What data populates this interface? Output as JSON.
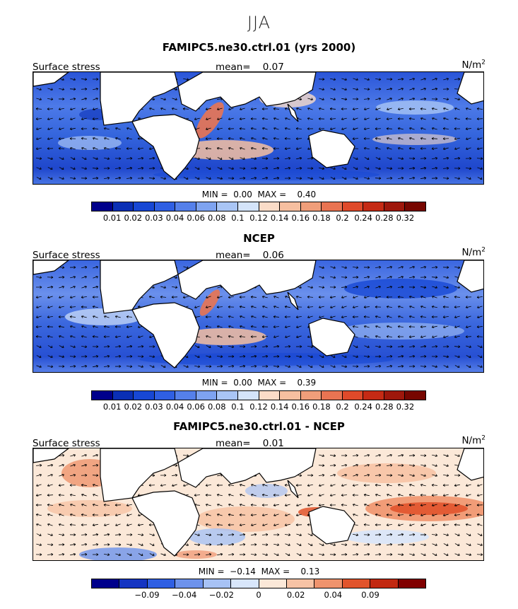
{
  "season": "JJA",
  "panels": [
    {
      "title": "FAMIPC5.ne30.ctrl.01 (yrs 2000)",
      "variable": "Surface stress",
      "mean_label": "mean=",
      "mean_value": "0.07",
      "units": "N/m",
      "units_exp": "2",
      "min_label": "MIN =",
      "min_value": "0.00",
      "max_label": "MAX =",
      "max_value": "0.40",
      "colorbar_ticks": [
        "0.01",
        "0.02",
        "0.03",
        "0.04",
        "0.06",
        "0.08",
        "0.1",
        "0.12",
        "0.14",
        "0.16",
        "0.18",
        "0.2",
        "0.24",
        "0.28",
        "0.32"
      ]
    },
    {
      "title": "NCEP",
      "variable": "Surface stress",
      "mean_label": "mean=",
      "mean_value": "0.06",
      "units": "N/m",
      "units_exp": "2",
      "min_label": "MIN =",
      "min_value": "0.00",
      "max_label": "MAX =",
      "max_value": "0.39",
      "colorbar_ticks": [
        "0.01",
        "0.02",
        "0.03",
        "0.04",
        "0.06",
        "0.08",
        "0.1",
        "0.12",
        "0.14",
        "0.16",
        "0.18",
        "0.2",
        "0.24",
        "0.28",
        "0.32"
      ]
    },
    {
      "title": "FAMIPC5.ne30.ctrl.01 - NCEP",
      "variable": "Surface stress",
      "mean_label": "mean=",
      "mean_value": "0.01",
      "units": "N/m",
      "units_exp": "2",
      "min_label": "MIN =",
      "min_value": "−0.14",
      "max_label": "MAX =",
      "max_value": "0.13",
      "colorbar_ticks": [
        "−0.09",
        "−0.04",
        "−0.02",
        "0",
        "0.02",
        "0.04",
        "0.09"
      ]
    }
  ],
  "colors": {
    "abs_scale": [
      "#00008b",
      "#0a2fb5",
      "#1747d4",
      "#2f5fe3",
      "#5580ea",
      "#7ea3f0",
      "#a9c5f5",
      "#d4e4fa",
      "#fadcc8",
      "#f6bfa0",
      "#f09e7a",
      "#e97452",
      "#df4a2a",
      "#c52a14",
      "#9e170b",
      "#770600"
    ],
    "diff_scale": [
      "#00008b",
      "#1535c2",
      "#2f5fe3",
      "#6d92ec",
      "#a7c2f5",
      "#d8e6fb",
      "#fbe8d8",
      "#f7c3a5",
      "#ef936d",
      "#e1542c",
      "#c22810",
      "#800000"
    ],
    "land": "#ffffff",
    "coast": "#000000"
  }
}
